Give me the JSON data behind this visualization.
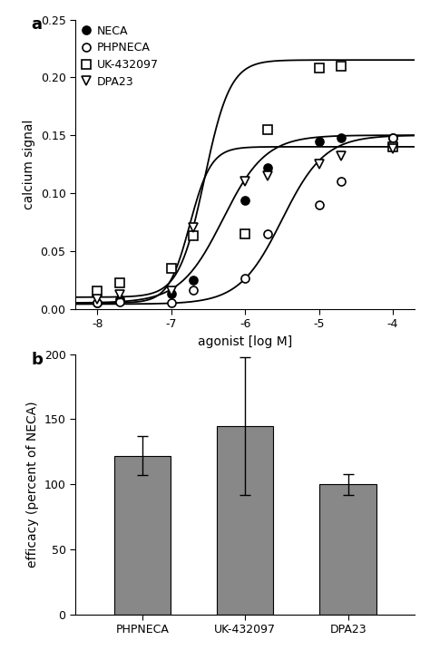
{
  "panel_a_label": "a",
  "panel_b_label": "b",
  "xlabel_a": "agonist [log M]",
  "ylabel_a": "calcium signal",
  "ylabel_b": "efficacy (percent of NECA)",
  "ylim_a": [
    0.0,
    0.25
  ],
  "yticks_a": [
    0.0,
    0.05,
    0.1,
    0.15,
    0.2,
    0.25
  ],
  "xlim_a": [
    -8.3,
    -3.7
  ],
  "xticks_a": [
    -8,
    -7,
    -6,
    -5,
    -4
  ],
  "ylim_b": [
    0,
    200
  ],
  "yticks_b": [
    0,
    50,
    100,
    150,
    200
  ],
  "bar_categories": [
    "PHPNECA",
    "UK-432097",
    "DPA23"
  ],
  "bar_values": [
    122,
    145,
    100
  ],
  "bar_errors_lo": [
    15,
    53,
    8
  ],
  "bar_errors_hi": [
    15,
    53,
    8
  ],
  "bar_color": "#888888",
  "neca_pts_x": [
    -8.0,
    -7.7,
    -7.0,
    -6.7,
    -6.0,
    -5.7,
    -5.0,
    -4.7,
    -4.0
  ],
  "neca_pts_y": [
    0.005,
    0.008,
    0.013,
    0.025,
    0.094,
    0.122,
    0.145,
    0.148,
    0.148
  ],
  "phpneca_pts_x": [
    -8.0,
    -7.7,
    -7.0,
    -6.7,
    -6.0,
    -5.7,
    -5.0,
    -4.7,
    -4.0
  ],
  "phpneca_pts_y": [
    0.005,
    0.006,
    0.005,
    0.016,
    0.026,
    0.065,
    0.09,
    0.11,
    0.148
  ],
  "uk_pts_x": [
    -8.0,
    -7.7,
    -7.0,
    -6.7,
    -6.0,
    -5.7,
    -5.0,
    -4.7,
    -4.0
  ],
  "uk_pts_y": [
    0.015,
    0.022,
    0.035,
    0.063,
    0.065,
    0.155,
    0.208,
    0.21,
    0.14
  ],
  "dpa23_pts_x": [
    -8.0,
    -7.7,
    -7.0,
    -6.7,
    -6.0,
    -5.7,
    -5.0,
    -4.7,
    -4.0
  ],
  "dpa23_pts_y": [
    0.008,
    0.012,
    0.015,
    0.07,
    0.11,
    0.115,
    0.125,
    0.132,
    0.138
  ],
  "neca_ec50": -6.3,
  "neca_emax": 0.15,
  "neca_hill": 1.5,
  "neca_base": 0.005,
  "phpneca_ec50": -5.5,
  "phpneca_emax": 0.15,
  "phpneca_hill": 1.5,
  "phpneca_base": 0.004,
  "uk_ec50": -6.55,
  "uk_emax": 0.215,
  "uk_hill": 2.5,
  "uk_base": 0.01,
  "dpa23_ec50": -6.75,
  "dpa23_emax": 0.14,
  "dpa23_hill": 3.0,
  "dpa23_base": 0.005
}
